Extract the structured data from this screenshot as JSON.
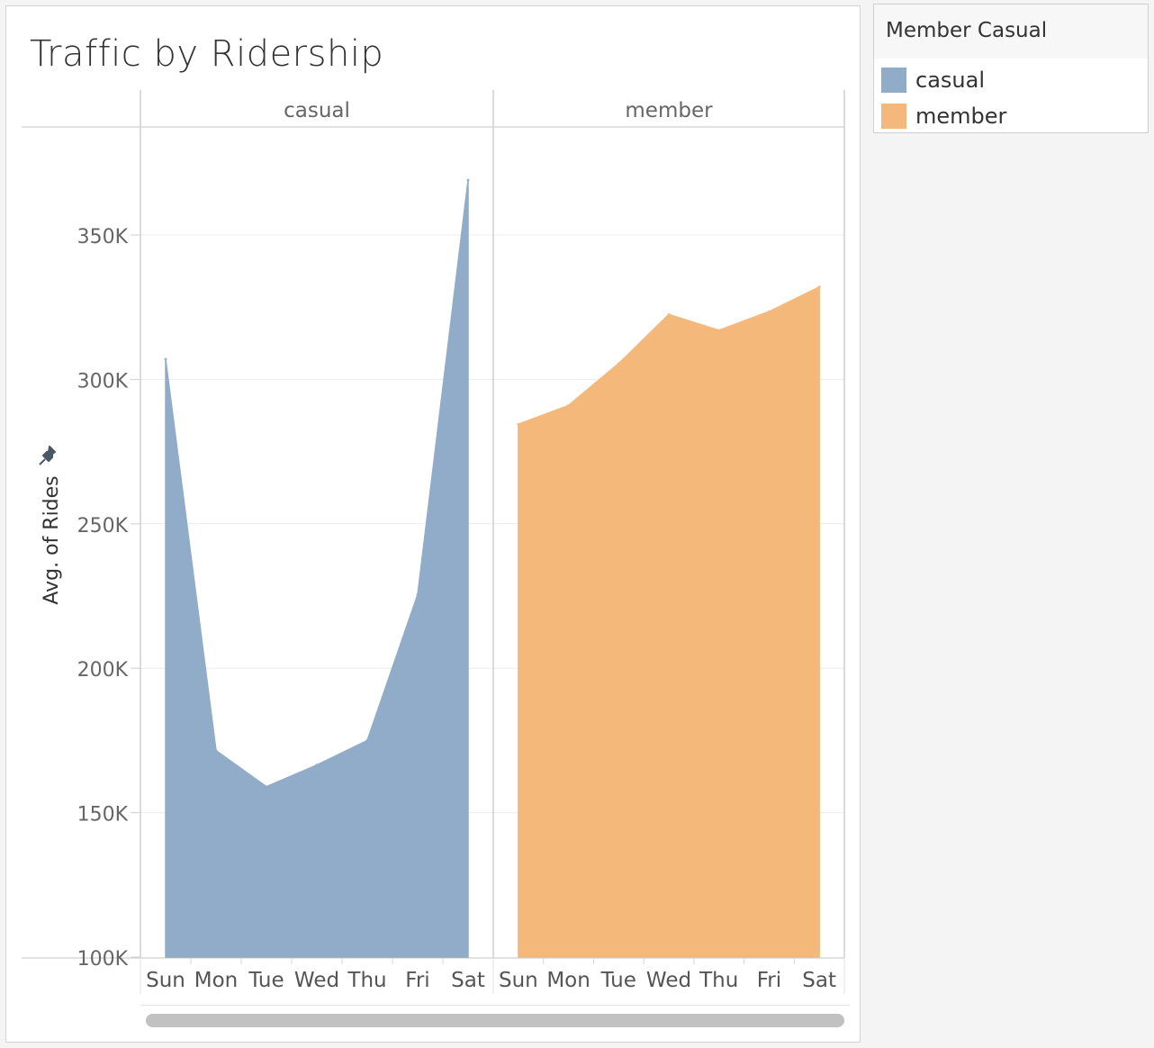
{
  "title": "Traffic by Ridership",
  "legend": {
    "title": "Member Casual",
    "items": [
      {
        "label": "casual",
        "color": "#91acc9"
      },
      {
        "label": "member",
        "color": "#f4b87a"
      }
    ]
  },
  "chart_data": {
    "type": "area",
    "title": "Traffic by Ridership",
    "ylabel": "Avg. of Rides",
    "ylim": [
      100000,
      380000
    ],
    "yticks": [
      100000,
      150000,
      200000,
      250000,
      300000,
      350000
    ],
    "ytick_labels": [
      "100K",
      "150K",
      "200K",
      "250K",
      "300K",
      "350K"
    ],
    "categories": [
      "Sun",
      "Mon",
      "Tue",
      "Wed",
      "Thu",
      "Fri",
      "Sat"
    ],
    "grid": true,
    "legend_position": "right",
    "panels": [
      {
        "name": "casual",
        "color": "#91acc9",
        "values": [
          307000,
          171500,
          159000,
          166500,
          175000,
          225500,
          369000
        ]
      },
      {
        "name": "member",
        "color": "#f4b87a",
        "values": [
          284500,
          291000,
          305500,
          322500,
          317000,
          323500,
          332000
        ]
      }
    ]
  }
}
